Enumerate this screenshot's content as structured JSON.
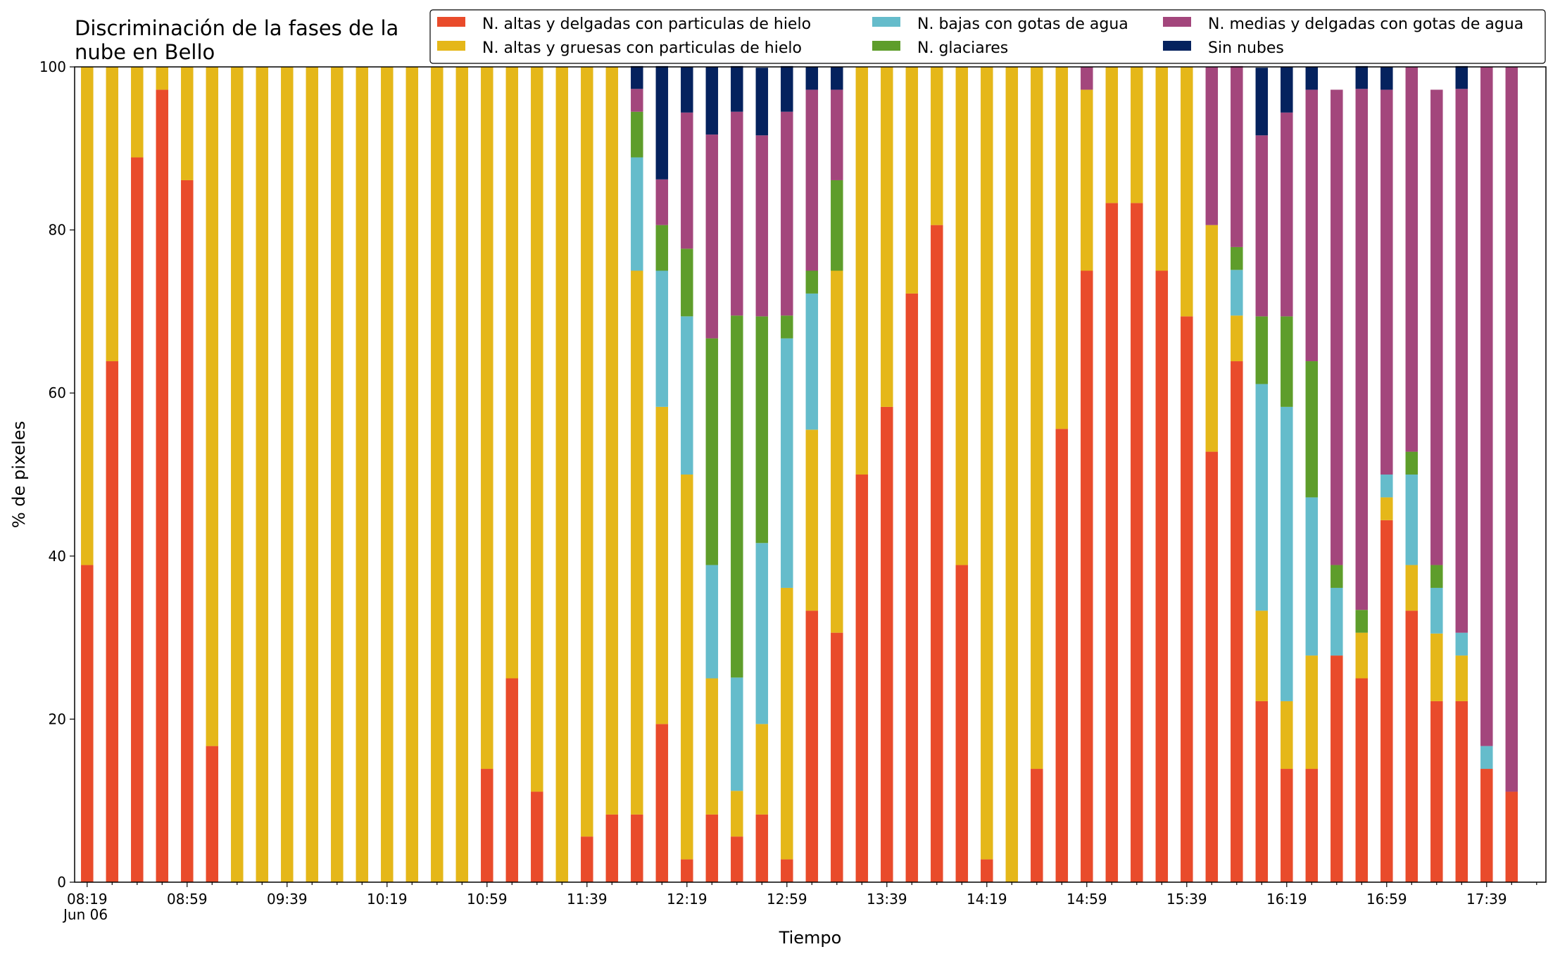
{
  "chart_data": {
    "type": "bar",
    "stacked": true,
    "title": "Discriminación de la fases de la nube en Bello",
    "title_lines": [
      "Discriminación de la fases de la",
      "nube en Bello"
    ],
    "xlabel": "Tiempo",
    "ylabel": "% de pixeles",
    "ylim": [
      0,
      100
    ],
    "yticks": [
      "0",
      "20",
      "40",
      "60",
      "80",
      "100"
    ],
    "grid": false,
    "legend_position": "top-right",
    "x_date_label": "Jun 06",
    "xtick_labels": [
      "08:19",
      "08:59",
      "09:39",
      "10:19",
      "10:59",
      "11:39",
      "12:19",
      "12:59",
      "13:39",
      "14:19",
      "14:59",
      "15:39",
      "16:19",
      "16:59",
      "17:39"
    ],
    "categories": [
      "08:19",
      "08:29",
      "08:39",
      "08:49",
      "08:59",
      "09:09",
      "09:19",
      "09:29",
      "09:39",
      "09:49",
      "09:59",
      "10:09",
      "10:19",
      "10:29",
      "10:39",
      "10:49",
      "10:59",
      "11:09",
      "11:19",
      "11:29",
      "11:39",
      "11:49",
      "11:59",
      "12:09",
      "12:19",
      "12:29",
      "12:39",
      "12:49",
      "12:59",
      "13:09",
      "13:19",
      "13:29",
      "13:39",
      "13:49",
      "13:59",
      "14:09",
      "14:19",
      "14:29",
      "14:39",
      "14:49",
      "14:59",
      "15:09",
      "15:19",
      "15:29",
      "15:39",
      "15:49",
      "15:59",
      "16:09",
      "16:19",
      "16:29",
      "16:39",
      "16:49",
      "16:59",
      "17:09",
      "17:19",
      "17:29",
      "17:39",
      "17:49"
    ],
    "series": [
      {
        "name": "N. altas y delgadas con particulas de hielo",
        "color": "#e94b2b",
        "values": [
          38.9,
          63.9,
          88.9,
          97.2,
          86.1,
          16.7,
          0,
          0,
          0,
          0,
          0,
          0,
          0,
          0,
          0,
          0,
          13.9,
          25,
          11.1,
          0,
          5.6,
          8.3,
          8.3,
          19.4,
          2.8,
          8.3,
          5.6,
          8.3,
          2.8,
          33.3,
          30.6,
          50,
          58.3,
          72.2,
          80.6,
          38.9,
          2.8,
          0,
          13.9,
          55.6,
          75,
          83.3,
          83.3,
          75,
          69.4,
          52.8,
          63.9,
          22.2,
          13.9,
          13.9,
          27.8,
          25,
          44.4,
          33.3,
          22.2,
          22.2,
          13.9,
          11.1
        ]
      },
      {
        "name": "N. altas y gruesas con particulas de hielo",
        "color": "#e5b719",
        "values": [
          61.1,
          36.1,
          11.1,
          2.8,
          13.9,
          83.3,
          100,
          100,
          100,
          100,
          100,
          100,
          100,
          100,
          100,
          100,
          86.1,
          75,
          88.9,
          100,
          94.4,
          91.7,
          66.7,
          38.9,
          47.2,
          16.7,
          5.6,
          11.1,
          33.3,
          22.2,
          44.4,
          50,
          41.7,
          27.8,
          19.4,
          61.1,
          97.2,
          100,
          86.1,
          44.4,
          22.2,
          16.7,
          16.7,
          25,
          30.6,
          27.8,
          5.6,
          11.1,
          8.3,
          13.9,
          0,
          5.6,
          2.8,
          5.6,
          8.3,
          5.6,
          0,
          0
        ]
      },
      {
        "name": "N. bajas con gotas de agua",
        "color": "#65bccb",
        "values": [
          0,
          0,
          0,
          0,
          0,
          0,
          0,
          0,
          0,
          0,
          0,
          0,
          0,
          0,
          0,
          0,
          0,
          0,
          0,
          0,
          0,
          0,
          13.9,
          16.7,
          19.4,
          13.9,
          13.9,
          22.2,
          30.6,
          16.7,
          0,
          0,
          0,
          0,
          0,
          0,
          0,
          0,
          0,
          0,
          0,
          0,
          0,
          0,
          0,
          0,
          5.6,
          27.8,
          36.1,
          19.4,
          8.3,
          0,
          2.8,
          11.1,
          5.6,
          2.8,
          2.8,
          0
        ]
      },
      {
        "name": "N. glaciares",
        "color": "#5e9d2b",
        "values": [
          0,
          0,
          0,
          0,
          0,
          0,
          0,
          0,
          0,
          0,
          0,
          0,
          0,
          0,
          0,
          0,
          0,
          0,
          0,
          0,
          0,
          0,
          5.6,
          5.6,
          8.3,
          27.8,
          44.4,
          27.8,
          2.8,
          2.8,
          11.1,
          0,
          0,
          0,
          0,
          0,
          0,
          0,
          0,
          0,
          0,
          0,
          0,
          0,
          0,
          0,
          2.8,
          8.3,
          11.1,
          16.7,
          2.8,
          2.8,
          0,
          2.8,
          2.8,
          0,
          0,
          0
        ]
      },
      {
        "name": "N. medias y delgadas con gotas de agua",
        "color": "#a3467c",
        "values": [
          0,
          0,
          0,
          0,
          0,
          0,
          0,
          0,
          0,
          0,
          0,
          0,
          0,
          0,
          0,
          0,
          0,
          0,
          0,
          0,
          0,
          0,
          2.8,
          5.6,
          16.7,
          25,
          25,
          22.2,
          25,
          22.2,
          11.1,
          0,
          0,
          0,
          0,
          0,
          0,
          0,
          0,
          0,
          2.8,
          0,
          0,
          0,
          0,
          19.4,
          22.2,
          22.2,
          25,
          33.3,
          58.3,
          63.9,
          47.2,
          47.2,
          58.3,
          66.7,
          83.3,
          88.9
        ]
      },
      {
        "name": "Sin nubes",
        "color": "#05225e",
        "values": [
          0,
          0,
          0,
          0,
          0,
          0,
          0,
          0,
          0,
          0,
          0,
          0,
          0,
          0,
          0,
          0,
          0,
          0,
          0,
          0,
          0,
          0,
          2.8,
          13.9,
          5.6,
          8.3,
          5.6,
          8.3,
          5.6,
          2.8,
          2.8,
          0,
          0,
          0,
          0,
          0,
          0,
          0,
          0,
          0,
          0,
          0,
          0,
          0,
          0,
          0,
          0,
          8.3,
          5.6,
          2.8,
          0,
          2.8,
          2.8,
          0,
          0,
          2.8,
          0,
          0
        ]
      }
    ]
  }
}
